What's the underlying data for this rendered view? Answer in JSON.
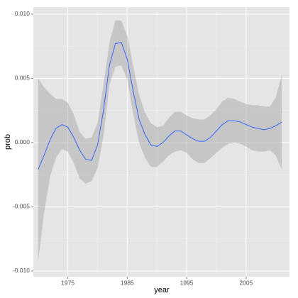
{
  "chart_data": {
    "type": "line",
    "xlabel": "year",
    "ylabel": "prob",
    "x": [
      1970,
      1971,
      1972,
      1973,
      1974,
      1975,
      1976,
      1977,
      1978,
      1979,
      1980,
      1981,
      1982,
      1983,
      1984,
      1985,
      1986,
      1987,
      1988,
      1989,
      1990,
      1991,
      1992,
      1993,
      1994,
      1995,
      1996,
      1997,
      1998,
      1999,
      2000,
      2001,
      2002,
      2003,
      2004,
      2005,
      2006,
      2007,
      2008,
      2009,
      2010,
      2011
    ],
    "values": [
      -0.0021,
      -0.001,
      0.0002,
      0.0011,
      0.0014,
      0.0012,
      0.0004,
      -0.0006,
      -0.0013,
      -0.0014,
      -0.0002,
      0.0025,
      0.006,
      0.0077,
      0.0078,
      0.0065,
      0.004,
      0.0018,
      0.0006,
      -0.0002,
      -0.0003,
      0.0,
      0.0005,
      0.0009,
      0.0009,
      0.0006,
      0.0003,
      0.0001,
      0.0001,
      0.0004,
      0.0009,
      0.0014,
      0.0017,
      0.0017,
      0.0016,
      0.0014,
      0.0012,
      0.0011,
      0.001,
      0.0011,
      0.0013,
      0.0016
    ],
    "lower": [
      -0.0093,
      -0.0055,
      -0.0027,
      -0.0012,
      -0.0005,
      -0.0007,
      -0.0016,
      -0.0028,
      -0.0032,
      -0.003,
      -0.002,
      0.0005,
      0.0045,
      0.0059,
      0.006,
      0.0049,
      0.0022,
      0.0,
      -0.0012,
      -0.0019,
      -0.0019,
      -0.0015,
      -0.001,
      -0.0007,
      -0.0006,
      -0.0008,
      -0.0013,
      -0.0016,
      -0.0016,
      -0.0012,
      -0.0008,
      -0.0004,
      -0.0001,
      0.0,
      -0.0001,
      -0.0003,
      -0.0006,
      -0.0007,
      -0.0007,
      -0.0006,
      -0.001,
      -0.0021
    ],
    "upper": [
      0.005,
      0.0043,
      0.0038,
      0.0034,
      0.0034,
      0.0031,
      0.0022,
      0.0008,
      0.0003,
      0.0004,
      0.0015,
      0.0045,
      0.0078,
      0.0095,
      0.0095,
      0.0083,
      0.006,
      0.0037,
      0.0023,
      0.0015,
      0.0012,
      0.0013,
      0.0019,
      0.0024,
      0.0024,
      0.0021,
      0.0019,
      0.0018,
      0.0018,
      0.0021,
      0.0026,
      0.0032,
      0.0035,
      0.0034,
      0.0032,
      0.003,
      0.0029,
      0.0029,
      0.0028,
      0.0028,
      0.0035,
      0.0053
    ],
    "color": "#3366ff",
    "band_color": "#999999",
    "xlim": [
      1969.2,
      2012.3
    ],
    "ylim": [
      -0.01045,
      0.01055
    ],
    "xticks": [
      1975,
      1985,
      1995,
      2005
    ],
    "yticks": [
      {
        "value": -0.01,
        "label": "-0.010"
      },
      {
        "value": -0.005,
        "label": "-0.005"
      },
      {
        "value": 0,
        "label": "0.000"
      },
      {
        "value": 0.005,
        "label": "0.005"
      },
      {
        "value": 0.01,
        "label": "0.010"
      }
    ],
    "grid": true
  }
}
